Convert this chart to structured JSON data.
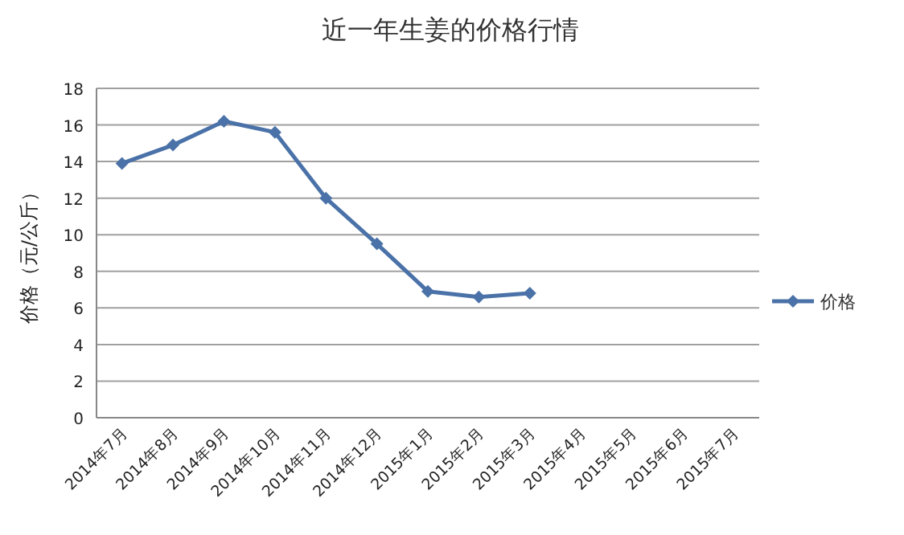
{
  "chart_data": {
    "type": "line",
    "title": "近一年生姜的价格行情",
    "ylabel": "价格（元/公斤）",
    "categories": [
      "2014年7月",
      "2014年8月",
      "2014年9月",
      "2014年10月",
      "2014年11月",
      "2014年12月",
      "2015年1月",
      "2015年2月",
      "2015年3月",
      "2015年4月",
      "2015年5月",
      "2015年6月",
      "2015年7月"
    ],
    "series": [
      {
        "name": "价格",
        "color": "#4a72a8",
        "values": [
          13.9,
          14.9,
          16.2,
          15.6,
          12.0,
          9.5,
          6.9,
          6.6,
          6.8,
          null,
          null,
          null,
          null
        ]
      }
    ],
    "ylim": [
      0,
      18
    ],
    "yticks": [
      0,
      2,
      4,
      6,
      8,
      10,
      12,
      14,
      16,
      18
    ],
    "grid": "y",
    "legend": "right",
    "marker": "diamond",
    "line_style": "solid"
  }
}
